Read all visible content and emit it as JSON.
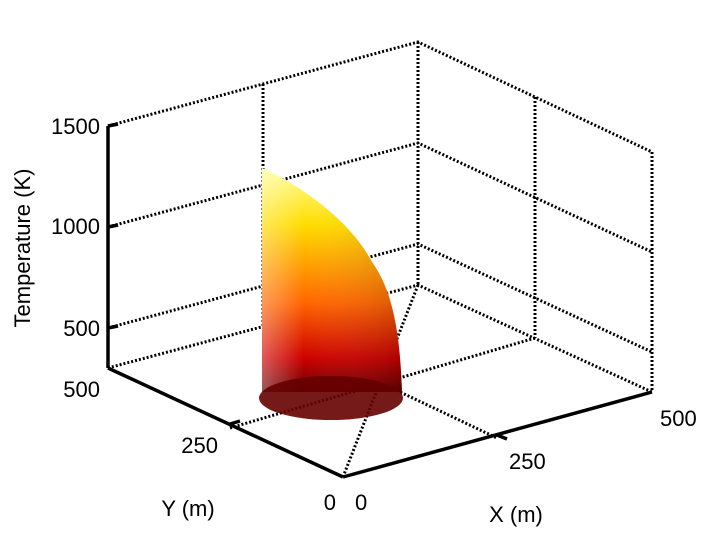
{
  "chart_data": {
    "type": "surface",
    "title": "",
    "xlabel": "X (m)",
    "ylabel": "Y (m)",
    "zlabel": "Temperature (K)",
    "xlim": [
      0,
      500
    ],
    "ylim": [
      0,
      500
    ],
    "zlim": [
      300,
      1500
    ],
    "x_ticks": [
      "0",
      "250",
      "500"
    ],
    "y_ticks": [
      "0",
      "250",
      "500"
    ],
    "z_ticks": [
      "500",
      "1000",
      "1500"
    ],
    "grid": true,
    "colormap": "hot",
    "surface_profile": [
      {
        "x": 0,
        "y": 80,
        "temperature": 1280
      },
      {
        "x": 30,
        "y": 110,
        "temperature": 1200
      },
      {
        "x": 60,
        "y": 140,
        "temperature": 1080
      },
      {
        "x": 90,
        "y": 160,
        "temperature": 960
      },
      {
        "x": 120,
        "y": 175,
        "temperature": 900
      },
      {
        "x": 150,
        "y": 185,
        "temperature": 700
      },
      {
        "x": 180,
        "y": 190,
        "temperature": 480
      }
    ],
    "colors": {
      "peak": "#ffff99",
      "high": "#ffdd00",
      "mid": "#ff6600",
      "low": "#cc0000",
      "base": "#660000"
    }
  }
}
